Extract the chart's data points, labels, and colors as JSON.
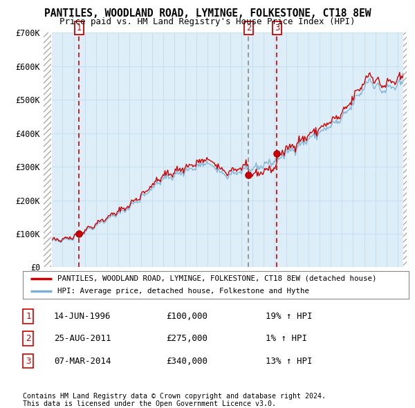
{
  "title": "PANTILES, WOODLAND ROAD, LYMINGE, FOLKESTONE, CT18 8EW",
  "subtitle": "Price paid vs. HM Land Registry's House Price Index (HPI)",
  "ylim": [
    0,
    700000
  ],
  "yticks": [
    0,
    100000,
    200000,
    300000,
    400000,
    500000,
    600000,
    700000
  ],
  "ytick_labels": [
    "£0",
    "£100K",
    "£200K",
    "£300K",
    "£400K",
    "£500K",
    "£600K",
    "£700K"
  ],
  "sale_prices": [
    100000,
    275000,
    340000
  ],
  "sale_labels": [
    "1",
    "2",
    "3"
  ],
  "sale_date_strs": [
    "14-JUN-1996",
    "25-AUG-2011",
    "07-MAR-2014"
  ],
  "sale_price_strs": [
    "£100,000",
    "£275,000",
    "£340,000"
  ],
  "sale_hpi_strs": [
    "19% ↑ HPI",
    "1% ↑ HPI",
    "13% ↑ HPI"
  ],
  "hpi_line_color": "#7bafd4",
  "price_line_color": "#cc0000",
  "dot_color": "#cc0000",
  "legend_line1": "PANTILES, WOODLAND ROAD, LYMINGE, FOLKESTONE, CT18 8EW (detached house)",
  "legend_line2": "HPI: Average price, detached house, Folkestone and Hythe",
  "footnote1": "Contains HM Land Registry data © Crown copyright and database right 2024.",
  "footnote2": "This data is licensed under the Open Government Licence v3.0.",
  "grid_color": "#c8dff0",
  "bg_color": "#deeef8"
}
